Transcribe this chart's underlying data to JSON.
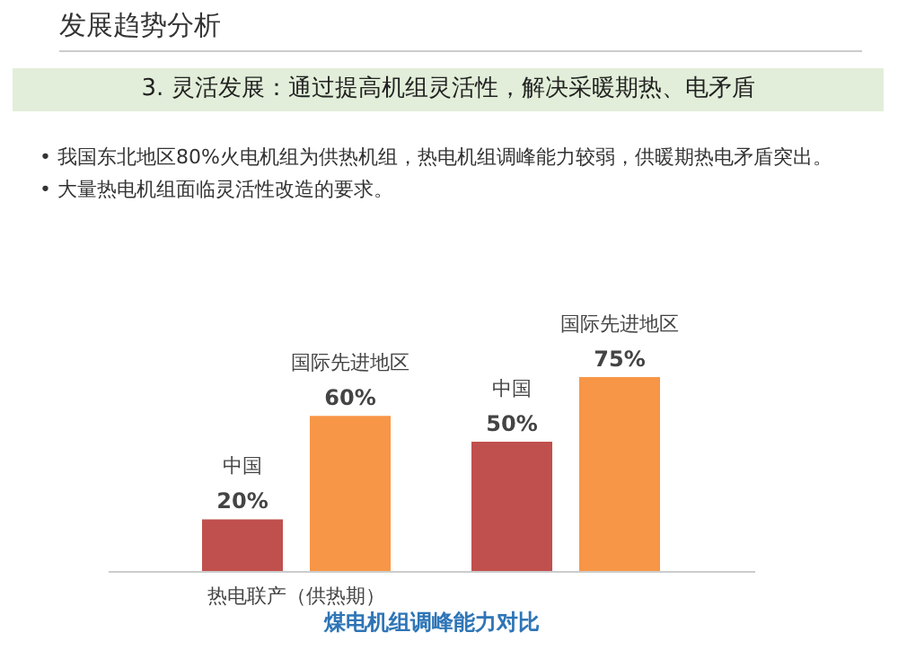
{
  "chart_data": {
    "type": "bar",
    "title": "发展趋势分析",
    "subtitle": "3. 灵活发展：通过提高机组灵活性，解决采暖期热、电矛盾",
    "annotations": [
      "• 我国东北地区80%火电机组为供热机组，热电机组调峰能力较弱，供暖期热电矛盾突出。",
      "• 大量热电机组面临灵活性改造的要求。"
    ],
    "xlabel": "煤电机组调峰能力对比",
    "categories": [
      "热电联产（供热期）",
      null
    ],
    "series": [
      {
        "name": "中国",
        "color": "#c0504d",
        "values": [
          20,
          50
        ],
        "value_labels": [
          "20%",
          "50%"
        ]
      },
      {
        "name": "国际先进地区",
        "color": "#f79646",
        "values": [
          60,
          75
        ],
        "value_labels": [
          "60%",
          "75%"
        ]
      }
    ],
    "legend": false
  }
}
